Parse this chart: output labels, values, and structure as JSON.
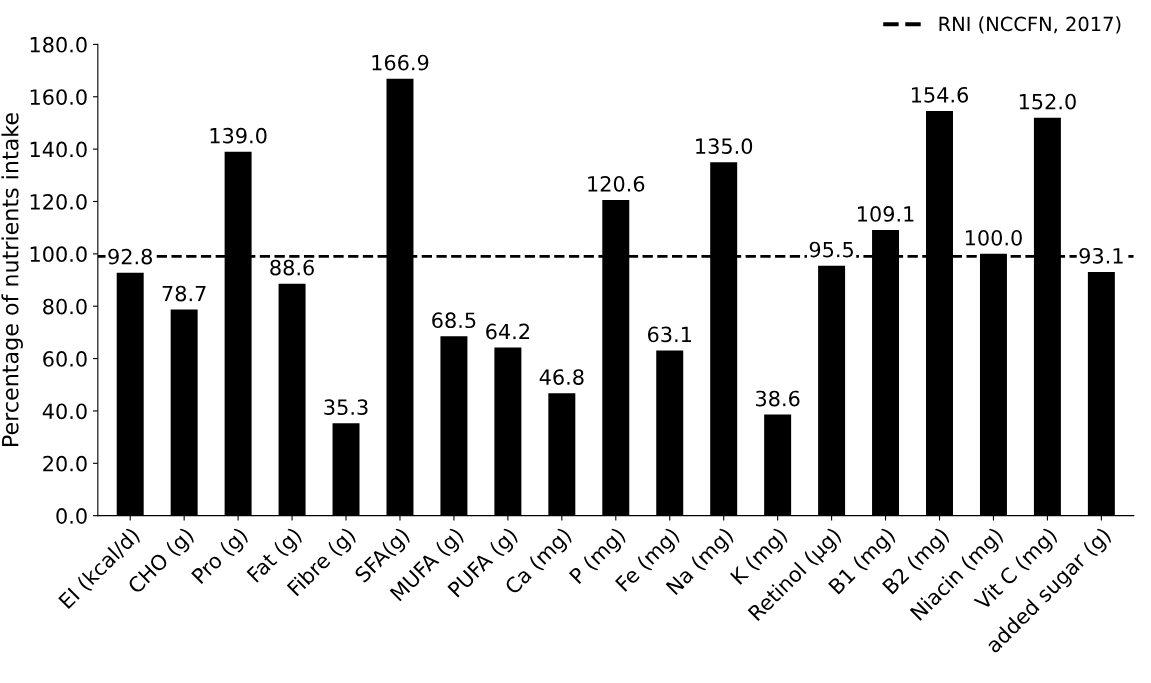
{
  "chart_data": {
    "type": "bar",
    "ylabel": "Percentage of nutrients intake",
    "categories": [
      "EI (kcal/d)",
      "CHO (g)",
      "Pro (g)",
      "Fat (g)",
      "Fibre (g)",
      "SFA(g)",
      "MUFA (g)",
      "PUFA (g)",
      "Ca (mg)",
      "P (mg)",
      "Fe (mg)",
      "Na (mg)",
      "K (mg)",
      "Retinol (μg)",
      "B1 (mg)",
      "B2 (mg)",
      "Niacin (mg)",
      "Vit C (mg)",
      "added sugar (g)"
    ],
    "values": [
      92.8,
      78.7,
      139.0,
      88.6,
      35.3,
      166.9,
      68.5,
      64.2,
      46.8,
      120.6,
      63.1,
      135.0,
      38.6,
      95.5,
      109.1,
      154.6,
      100.0,
      152.0,
      93.1
    ],
    "value_labels": [
      "92.8",
      "78.7",
      "139.0",
      "88.6",
      "35.3",
      "166.9",
      "68.5",
      "64.2",
      "46.8",
      "120.6",
      "63.1",
      "135.0",
      "38.6",
      "95.5",
      "109.1",
      "154.6",
      "100.0",
      "152.0",
      "93.1"
    ],
    "color": "#000000",
    "ylim": [
      0,
      180
    ],
    "yticks": [
      {
        "value": 0,
        "label": "0.0"
      },
      {
        "value": 20,
        "label": "20.0"
      },
      {
        "value": 40,
        "label": "40.0"
      },
      {
        "value": 60,
        "label": "60.0"
      },
      {
        "value": 80,
        "label": "80.0"
      },
      {
        "value": 100,
        "label": "100.0"
      },
      {
        "value": 120,
        "label": "120.0"
      },
      {
        "value": 140,
        "label": "140.0"
      },
      {
        "value": 160,
        "label": "160.0"
      },
      {
        "value": 180,
        "label": "180.0"
      }
    ],
    "ref_lines": [
      {
        "axis": "y",
        "value": 99,
        "label": "RNI (NCCFN, 2017)",
        "color": "#000000",
        "line_style": "dashed"
      }
    ],
    "grid": false,
    "legend": "top right"
  }
}
